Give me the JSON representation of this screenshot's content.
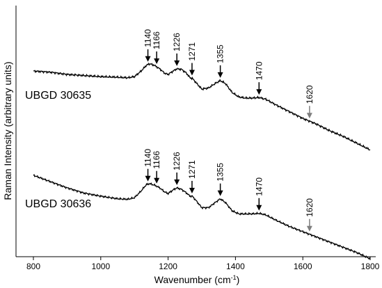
{
  "chart_data": {
    "type": "line",
    "xlabel_main": "Wavenumber (cm",
    "xlabel_sup": "-1",
    "xlabel_end": ")",
    "ylabel": "Raman Intensity (arbitrary units)",
    "xlim": [
      800,
      1800
    ],
    "x_ticks": [
      "800",
      "1000",
      "1200",
      "1400",
      "1600",
      "1800"
    ],
    "spectra": [
      {
        "name": "UBGD 30635",
        "x": [
          800,
          850,
          900,
          950,
          1000,
          1050,
          1080,
          1100,
          1120,
          1135,
          1145,
          1160,
          1175,
          1190,
          1200,
          1215,
          1226,
          1240,
          1255,
          1265,
          1272,
          1285,
          1300,
          1320,
          1340,
          1355,
          1370,
          1390,
          1410,
          1430,
          1450,
          1470,
          1490,
          1520,
          1560,
          1600,
          1640,
          1680,
          1720,
          1760,
          1800
        ],
        "y": [
          0.74,
          0.73,
          0.71,
          0.7,
          0.69,
          0.685,
          0.68,
          0.69,
          0.74,
          0.79,
          0.805,
          0.79,
          0.76,
          0.72,
          0.71,
          0.74,
          0.76,
          0.755,
          0.72,
          0.68,
          0.675,
          0.63,
          0.58,
          0.59,
          0.63,
          0.655,
          0.63,
          0.55,
          0.51,
          0.5,
          0.5,
          0.505,
          0.49,
          0.44,
          0.38,
          0.32,
          0.27,
          0.21,
          0.16,
          0.1,
          0.04
        ]
      },
      {
        "name": "UBGD 30636",
        "x": [
          800,
          850,
          900,
          950,
          1000,
          1050,
          1080,
          1100,
          1120,
          1135,
          1145,
          1160,
          1175,
          1190,
          1200,
          1215,
          1226,
          1240,
          1255,
          1265,
          1272,
          1285,
          1300,
          1320,
          1340,
          1355,
          1370,
          1390,
          1410,
          1430,
          1450,
          1470,
          1490,
          1520,
          1560,
          1600,
          1640,
          1680,
          1720,
          1760,
          1800
        ],
        "y": [
          0.78,
          0.72,
          0.66,
          0.61,
          0.58,
          0.555,
          0.55,
          0.565,
          0.63,
          0.69,
          0.7,
          0.685,
          0.66,
          0.62,
          0.605,
          0.64,
          0.66,
          0.645,
          0.61,
          0.58,
          0.58,
          0.53,
          0.47,
          0.47,
          0.52,
          0.555,
          0.52,
          0.44,
          0.41,
          0.41,
          0.41,
          0.415,
          0.4,
          0.35,
          0.29,
          0.24,
          0.19,
          0.14,
          0.09,
          0.04,
          -0.02
        ]
      }
    ],
    "annotations": [
      {
        "spectrum": 0,
        "x": 1140,
        "label": "1140",
        "color": "#000000"
      },
      {
        "spectrum": 0,
        "x": 1166,
        "label": "1166",
        "color": "#000000"
      },
      {
        "spectrum": 0,
        "x": 1226,
        "label": "1226",
        "color": "#000000"
      },
      {
        "spectrum": 0,
        "x": 1271,
        "label": "1271",
        "color": "#000000"
      },
      {
        "spectrum": 0,
        "x": 1355,
        "label": "1355",
        "color": "#000000"
      },
      {
        "spectrum": 0,
        "x": 1470,
        "label": "1470",
        "color": "#000000"
      },
      {
        "spectrum": 0,
        "x": 1620,
        "label": "1620",
        "color": "#7f7f7f"
      },
      {
        "spectrum": 1,
        "x": 1140,
        "label": "1140",
        "color": "#000000"
      },
      {
        "spectrum": 1,
        "x": 1166,
        "label": "1166",
        "color": "#000000"
      },
      {
        "spectrum": 1,
        "x": 1226,
        "label": "1226",
        "color": "#000000"
      },
      {
        "spectrum": 1,
        "x": 1271,
        "label": "1271",
        "color": "#000000"
      },
      {
        "spectrum": 1,
        "x": 1355,
        "label": "1355",
        "color": "#000000"
      },
      {
        "spectrum": 1,
        "x": 1470,
        "label": "1470",
        "color": "#000000"
      },
      {
        "spectrum": 1,
        "x": 1620,
        "label": "1620",
        "color": "#7f7f7f"
      }
    ],
    "line_color": "#000000",
    "grid": false,
    "legend": "none"
  }
}
